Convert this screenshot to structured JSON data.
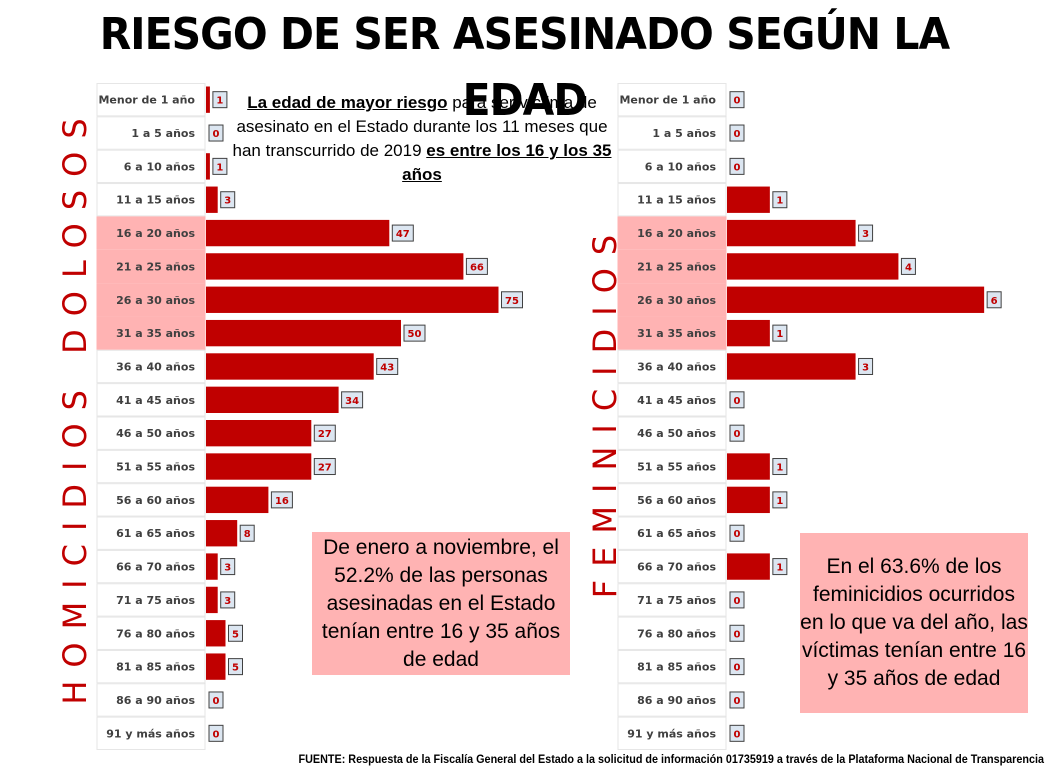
{
  "title": "RIESGO DE SER ASESINADO SEGÚN LA EDAD",
  "note_top": {
    "part1": "La edad de mayor riesgo",
    "part2": " para ser víctima de asesinato en el Estado durante los 11 meses que han transcurrido de 2019 ",
    "part3": "es entre los 16 y los 35 años"
  },
  "callout_left": "De enero a noviembre, el 52.2% de las personas asesinadas en el Estado tenían entre 16 y 35 años de edad",
  "callout_right": "En el 63.6% de los feminicidios ocurridos en lo que va del año, las víctimas tenían entre 16 y 35 años de edad",
  "source": "FUENTE: Respuesta de la Fiscalía General del Estado a la solicitud de información 01735919 a través de la Plataforma Nacional de Transparencia",
  "colors": {
    "bar": "#c00000",
    "highlight_band": "#ffb3b3",
    "vertical_title": "#c00000",
    "label_box_fill": "#dce6f1"
  },
  "chart_data": [
    {
      "type": "bar",
      "orientation": "horizontal",
      "title": "HOMICIDIOS DOLOSOS",
      "categories": [
        "Menor de 1  año",
        "1 a 5  años",
        "6 a 10  años",
        "11 a 15  años",
        "16 a 20  años",
        "21 a 25  años",
        "26 a 30  años",
        "31 a 35  años",
        "36 a 40  años",
        "41 a 45  años",
        "46 a 50  años",
        "51 a 55  años",
        "56 a 60  años",
        "61 a 65  años",
        "66 a 70  años",
        "71 a 75  años",
        "76 a 80  años",
        "81 a 85  años",
        "86 a 90  años",
        "91 y más años"
      ],
      "values": [
        1,
        0,
        1,
        3,
        47,
        66,
        75,
        50,
        43,
        34,
        27,
        27,
        16,
        8,
        3,
        3,
        5,
        5,
        0,
        0
      ],
      "highlighted": [
        "16 a 20  años",
        "21 a 25  años",
        "26 a 30  años",
        "31 a 35  años"
      ],
      "xlim": [
        0,
        100
      ]
    },
    {
      "type": "bar",
      "orientation": "horizontal",
      "title": "FEMINICIDIOS",
      "categories": [
        "Menor de 1  año",
        "1 a 5  años",
        "6 a 10  años",
        "11 a 15  años",
        "16 a 20  años",
        "21 a 25  años",
        "26 a 30  años",
        "31 a 35  años",
        "36 a 40  años",
        "41 a 45  años",
        "46 a 50  años",
        "51 a 55  años",
        "56 a 60  años",
        "61 a 65  años",
        "66 a 70  años",
        "71 a 75  años",
        "76 a 80  años",
        "81 a 85  años",
        "86 a 90  años",
        "91 y más años"
      ],
      "values": [
        0,
        0,
        0,
        1,
        3,
        4,
        6,
        1,
        3,
        0,
        0,
        1,
        1,
        0,
        1,
        0,
        0,
        0,
        0,
        0
      ],
      "highlighted": [
        "16 a 20  años",
        "21 a 25  años",
        "26 a 30  años",
        "31 a 35  años"
      ],
      "xlim": [
        0,
        6.3
      ]
    }
  ]
}
